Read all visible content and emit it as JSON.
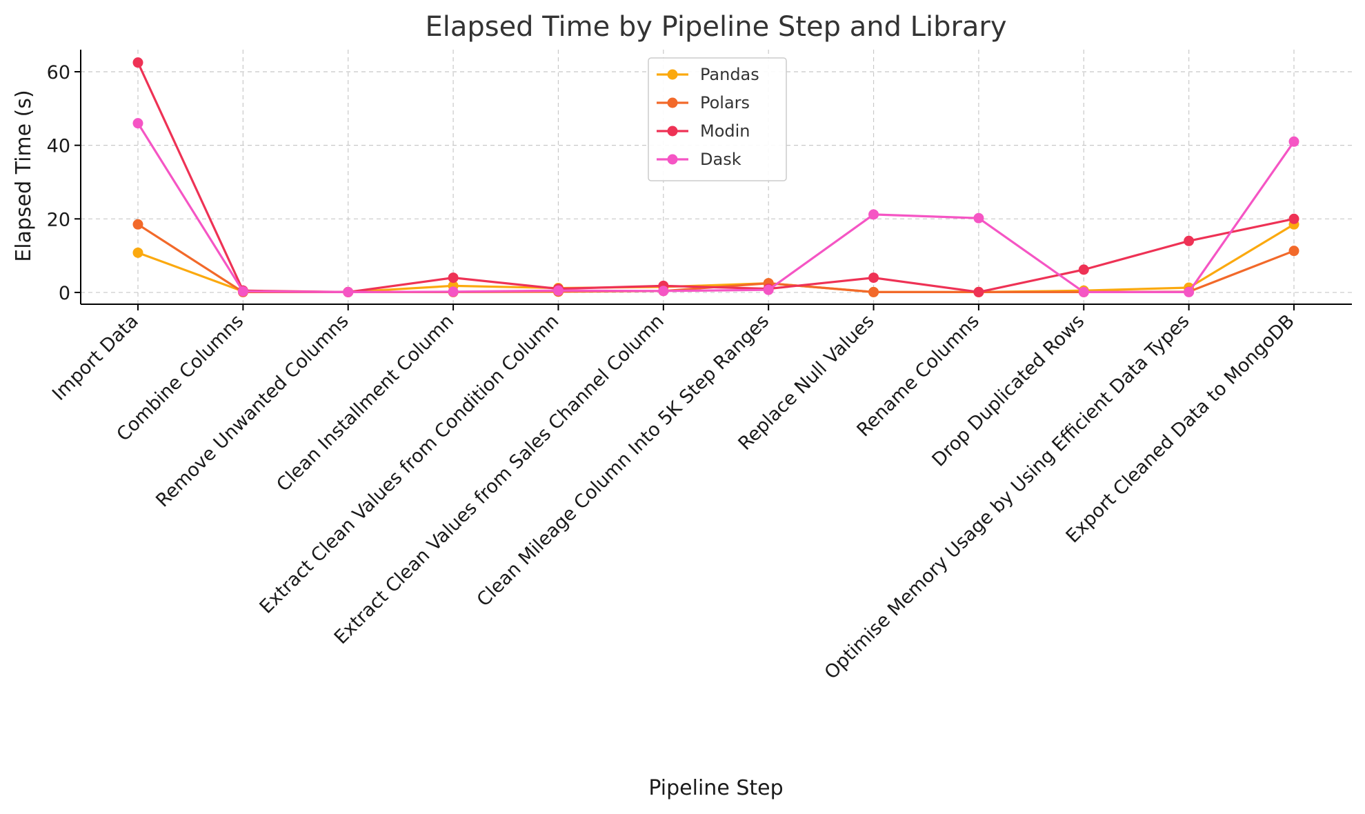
{
  "chart_data": {
    "type": "line",
    "title": "Elapsed Time by Pipeline Step and Library",
    "xlabel": "Pipeline Step",
    "ylabel": "Elapsed Time (s)",
    "ylim": [
      -3.2,
      66
    ],
    "yticks": [
      0,
      20,
      40,
      60
    ],
    "grid": true,
    "legend_position": "top-center",
    "categories": [
      "Import Data",
      "Combine Columns",
      "Remove Unwanted Columns",
      "Clean Installment Column",
      "Extract Clean Values from Condition Column",
      "Extract Clean Values from Sales Channel Column",
      "Clean Mileage Column Into 5K Step Ranges",
      "Replace Null Values",
      "Rename Columns",
      "Drop Duplicated Rows",
      "Optimise Memory Usage by Using Efficient Data Types",
      "Export Cleaned Data to MongoDB"
    ],
    "series": [
      {
        "name": "Pandas",
        "color": "#FBA90F",
        "values": [
          10.8,
          0.3,
          0.1,
          1.8,
          1.2,
          1.5,
          2.5,
          0.1,
          0.1,
          0.5,
          1.3,
          18.5
        ]
      },
      {
        "name": "Polars",
        "color": "#F2692A",
        "values": [
          18.5,
          0.1,
          0.1,
          0.1,
          0.2,
          0.4,
          2.5,
          0.1,
          0.1,
          0.1,
          0.2,
          11.3
        ]
      },
      {
        "name": "Modin",
        "color": "#EE3255",
        "values": [
          62.5,
          0.5,
          0.1,
          4.0,
          1.0,
          1.8,
          1.0,
          4.0,
          0.1,
          6.2,
          14.0,
          20.0
        ]
      },
      {
        "name": "Dask",
        "color": "#F555C4",
        "values": [
          46.0,
          0.3,
          0.1,
          0.2,
          0.5,
          0.4,
          0.7,
          21.2,
          20.2,
          0.1,
          0.1,
          41.0
        ]
      }
    ]
  }
}
